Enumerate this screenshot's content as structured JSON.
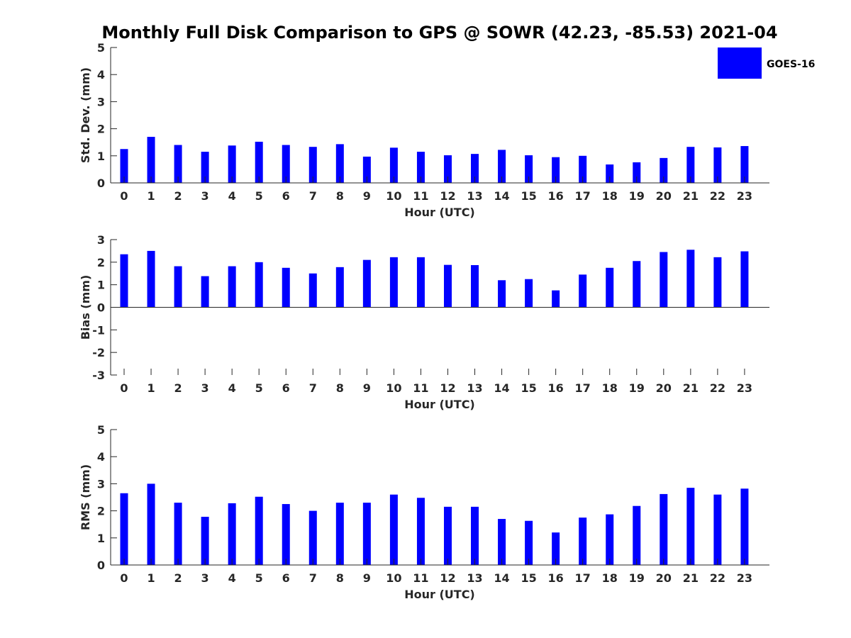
{
  "chart_data": [
    {
      "type": "bar",
      "title": "Monthly Full Disk Comparison to GPS @ SOWR (42.23, -85.53) 2021-04",
      "xlabel": "Hour (UTC)",
      "ylabel": "Std. Dev. (mm)",
      "categories": [
        "0",
        "1",
        "2",
        "3",
        "4",
        "5",
        "6",
        "7",
        "8",
        "9",
        "10",
        "11",
        "12",
        "13",
        "14",
        "15",
        "16",
        "17",
        "18",
        "19",
        "20",
        "21",
        "22",
        "23"
      ],
      "ylim": [
        0,
        5
      ],
      "yticks": [
        0,
        1,
        2,
        3,
        4,
        5
      ],
      "series": [
        {
          "name": "GOES-16",
          "color": "#0000ff",
          "values": [
            1.25,
            1.7,
            1.4,
            1.15,
            1.38,
            1.52,
            1.4,
            1.33,
            1.43,
            0.97,
            1.3,
            1.15,
            1.02,
            1.07,
            1.22,
            1.02,
            0.95,
            1.0,
            0.68,
            0.76,
            0.92,
            1.33,
            1.31,
            1.36
          ]
        }
      ],
      "legend": {
        "position": "top-right",
        "entries": [
          "GOES-16"
        ]
      }
    },
    {
      "type": "bar",
      "xlabel": "Hour (UTC)",
      "ylabel": "Bias (mm)",
      "categories": [
        "0",
        "1",
        "2",
        "3",
        "4",
        "5",
        "6",
        "7",
        "8",
        "9",
        "10",
        "11",
        "12",
        "13",
        "14",
        "15",
        "16",
        "17",
        "18",
        "19",
        "20",
        "21",
        "22",
        "23"
      ],
      "ylim": [
        -3,
        3
      ],
      "yticks": [
        -3,
        -2,
        -1,
        0,
        1,
        2,
        3
      ],
      "series": [
        {
          "name": "GOES-16",
          "color": "#0000ff",
          "values": [
            2.35,
            2.5,
            1.82,
            1.38,
            1.82,
            2.0,
            1.75,
            1.5,
            1.78,
            2.1,
            2.22,
            2.22,
            1.88,
            1.87,
            1.2,
            1.25,
            0.75,
            1.45,
            1.75,
            2.05,
            2.45,
            2.55,
            2.22,
            2.48
          ]
        }
      ]
    },
    {
      "type": "bar",
      "xlabel": "Hour (UTC)",
      "ylabel": "RMS (mm)",
      "categories": [
        "0",
        "1",
        "2",
        "3",
        "4",
        "5",
        "6",
        "7",
        "8",
        "9",
        "10",
        "11",
        "12",
        "13",
        "14",
        "15",
        "16",
        "17",
        "18",
        "19",
        "20",
        "21",
        "22",
        "23"
      ],
      "ylim": [
        0,
        5
      ],
      "yticks": [
        0,
        1,
        2,
        3,
        4,
        5
      ],
      "series": [
        {
          "name": "GOES-16",
          "color": "#0000ff",
          "values": [
            2.65,
            3.0,
            2.3,
            1.78,
            2.28,
            2.52,
            2.25,
            2.0,
            2.3,
            2.3,
            2.6,
            2.48,
            2.15,
            2.15,
            1.7,
            1.63,
            1.2,
            1.75,
            1.87,
            2.18,
            2.62,
            2.85,
            2.6,
            2.82
          ]
        }
      ]
    }
  ]
}
